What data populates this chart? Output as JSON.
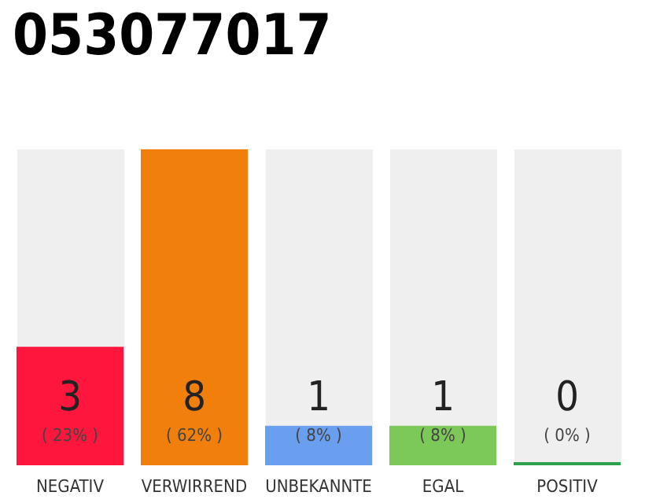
{
  "chart_data": {
    "type": "bar",
    "title": "053077017",
    "categories": [
      "NEGATIV",
      "VERWIRREND",
      "UNBEKANNTE",
      "EGAL",
      "POSITIV"
    ],
    "values": [
      3,
      8,
      1,
      1,
      0
    ],
    "value_labels": [
      "3\n( 23% )",
      "8\n( 62% )",
      "1\n( 8% )",
      "1\n( 8% )",
      "0\n( 0% )"
    ],
    "colors": [
      "#fe163c",
      "#f07f0c",
      "#6a9ff0",
      "#7cc95a",
      "#2ca24e"
    ],
    "tick_labels": "x",
    "grid": false
  }
}
